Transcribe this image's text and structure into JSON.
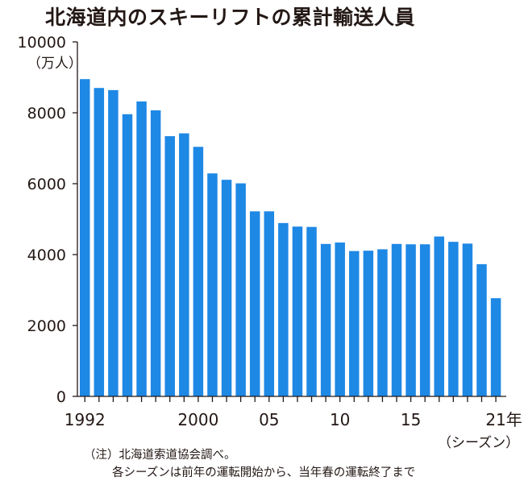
{
  "chart_data": {
    "type": "bar",
    "title": "北海道内のスキーリフトの累計輸送人員",
    "ylabel": "（万人）",
    "xlabel": "（シーズン）",
    "ylim": [
      0,
      10000
    ],
    "yticks": [
      "10000",
      "8000",
      "6000",
      "4000",
      "2000",
      "0"
    ],
    "xtick_labels": [
      "1992",
      "2000",
      "05",
      "10",
      "15",
      "21年"
    ],
    "bar_color": "#1e88e5",
    "grid": false,
    "categories": [
      "1992",
      "1993",
      "1994",
      "1995",
      "1996",
      "1997",
      "1998",
      "1999",
      "2000",
      "2001",
      "2002",
      "2003",
      "2004",
      "2005",
      "2006",
      "2007",
      "2008",
      "2009",
      "2010",
      "2011",
      "2012",
      "2013",
      "2014",
      "2015",
      "2016",
      "2017",
      "2018",
      "2019",
      "2020",
      "2021"
    ],
    "values": [
      8950,
      8700,
      8640,
      7960,
      8320,
      8070,
      7340,
      7420,
      7040,
      6290,
      6110,
      6010,
      5220,
      5220,
      4890,
      4790,
      4780,
      4300,
      4340,
      4100,
      4110,
      4150,
      4300,
      4290,
      4290,
      4510,
      4360,
      4310,
      3730,
      2770
    ]
  },
  "notes": {
    "line1": "（注）北海道索道協会調べ。",
    "line2": "各シーズンは前年の運転開始から、当年春の運転終了まで"
  }
}
